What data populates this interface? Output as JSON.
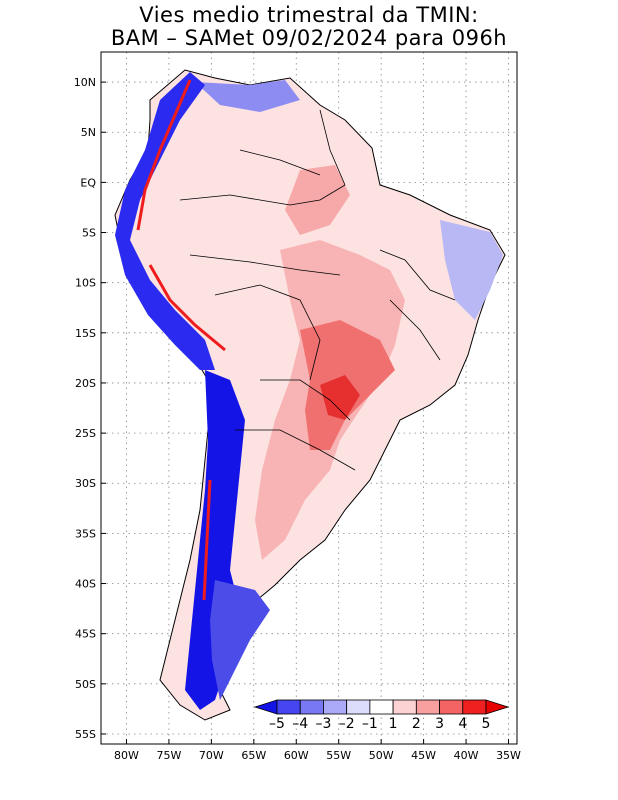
{
  "title": {
    "line1": "Vies medio trimestral da TMIN:",
    "line2": "BAM – SAMet 09/02/2024  para 096h"
  },
  "map": {
    "lon_range": [
      -83,
      -34
    ],
    "lat_range": [
      -56,
      13
    ],
    "grid": true,
    "lat_ticks": [
      {
        "value": 10,
        "label": "10N"
      },
      {
        "value": 5,
        "label": "5N"
      },
      {
        "value": 0,
        "label": "EQ"
      },
      {
        "value": -5,
        "label": "5S"
      },
      {
        "value": -10,
        "label": "10S"
      },
      {
        "value": -15,
        "label": "15S"
      },
      {
        "value": -20,
        "label": "20S"
      },
      {
        "value": -25,
        "label": "25S"
      },
      {
        "value": -30,
        "label": "30S"
      },
      {
        "value": -35,
        "label": "35S"
      },
      {
        "value": -40,
        "label": "40S"
      },
      {
        "value": -45,
        "label": "45S"
      },
      {
        "value": -50,
        "label": "50S"
      },
      {
        "value": -55,
        "label": "55S"
      }
    ],
    "lon_ticks": [
      {
        "value": -80,
        "label": "80W"
      },
      {
        "value": -75,
        "label": "75W"
      },
      {
        "value": -70,
        "label": "70W"
      },
      {
        "value": -65,
        "label": "65W"
      },
      {
        "value": -60,
        "label": "60W"
      },
      {
        "value": -55,
        "label": "55W"
      },
      {
        "value": -50,
        "label": "50W"
      },
      {
        "value": -45,
        "label": "45W"
      },
      {
        "value": -40,
        "label": "40W"
      },
      {
        "value": -35,
        "label": "35W"
      }
    ]
  },
  "colorbar": {
    "labels": [
      "–5",
      "–4",
      "–3",
      "–2",
      "–1",
      "1",
      "2",
      "3",
      "4",
      "5"
    ],
    "colors": [
      "#1414e6",
      "#4646f0",
      "#7878f5",
      "#aaaaf8",
      "#dcdcfc",
      "#ffffff",
      "#fcd2d2",
      "#f8a0a0",
      "#f46464",
      "#ee2020",
      "#e60000"
    ]
  },
  "regions": {
    "continent_fill": "#fde2e2",
    "warm_core": "#f59a9a",
    "cold_andes": "#1a1aeb",
    "cold_south": "#3c3ce6",
    "mild_cold": "#b4b4f4",
    "hot_spots": "#ee1c1c",
    "outline": "#000000"
  }
}
